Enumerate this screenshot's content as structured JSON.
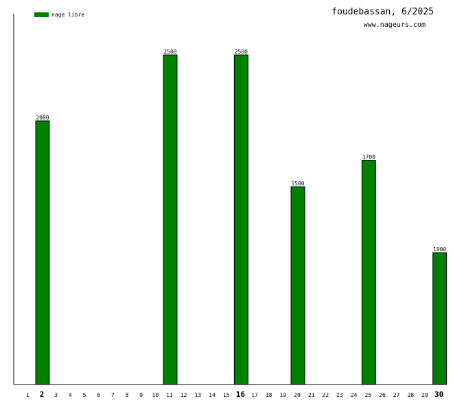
{
  "chart_data": {
    "type": "bar",
    "title": "foudebassan, 6/2025",
    "subtitle": "www.nageurs.com",
    "xlabel": "",
    "ylabel": "",
    "ylim": [
      0,
      2500
    ],
    "categories": [
      "1",
      "2",
      "3",
      "4",
      "5",
      "6",
      "7",
      "8",
      "9",
      "10",
      "11",
      "12",
      "13",
      "14",
      "15",
      "16",
      "17",
      "18",
      "19",
      "20",
      "21",
      "22",
      "23",
      "24",
      "25",
      "26",
      "27",
      "28",
      "29",
      "30"
    ],
    "highlighted_categories": [
      "2",
      "16",
      "30"
    ],
    "series": [
      {
        "name": "nage libre",
        "color": "#008000",
        "values": [
          null,
          2000,
          null,
          null,
          null,
          null,
          null,
          null,
          null,
          null,
          2500,
          null,
          null,
          null,
          null,
          2500,
          null,
          null,
          null,
          1500,
          null,
          null,
          null,
          null,
          1700,
          null,
          null,
          null,
          null,
          1000
        ]
      }
    ],
    "legend": "top-left",
    "grid": false
  }
}
